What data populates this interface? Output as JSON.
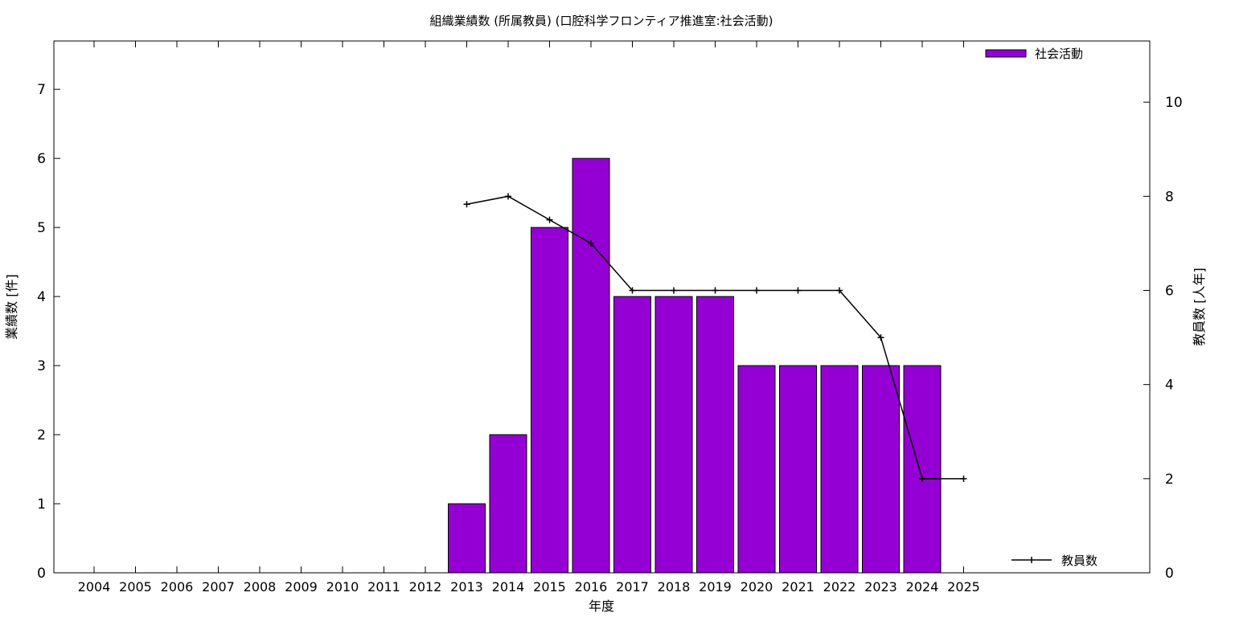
{
  "chart_data": {
    "type": "bar",
    "title": "組織業績数 (所属教員) (口腔科学フロンティア推進室:社会活動)",
    "xlabel": "年度",
    "ylabel": "業績数 [件]",
    "y2label": "教員数 [人年]",
    "categories": [
      "2004",
      "2005",
      "2006",
      "2007",
      "2008",
      "2009",
      "2010",
      "2011",
      "2012",
      "2013",
      "2014",
      "2015",
      "2016",
      "2017",
      "2018",
      "2019",
      "2020",
      "2021",
      "2022",
      "2023",
      "2024",
      "2025"
    ],
    "ylim": [
      0,
      7.7
    ],
    "y2lim": [
      0,
      11.3
    ],
    "yticks": [
      0,
      1,
      2,
      3,
      4,
      5,
      6,
      7
    ],
    "y2ticks": [
      0,
      2,
      4,
      6,
      8,
      10
    ],
    "legend_position": "top-right",
    "series": [
      {
        "name": "社会活動",
        "type": "bar",
        "axis": "left",
        "color": "#9400d3",
        "values": [
          null,
          null,
          null,
          null,
          null,
          null,
          null,
          null,
          null,
          1,
          2,
          5,
          6,
          4,
          4,
          4,
          3,
          3,
          3,
          3,
          3,
          null
        ]
      },
      {
        "name": "教員数",
        "type": "line",
        "axis": "right",
        "color": "#000000",
        "values": [
          null,
          null,
          null,
          null,
          null,
          null,
          null,
          null,
          null,
          7.83,
          8.0,
          7.5,
          7.0,
          6.0,
          6.0,
          6.0,
          6.0,
          6.0,
          6.0,
          5.0,
          2.0,
          2.0
        ]
      }
    ]
  }
}
